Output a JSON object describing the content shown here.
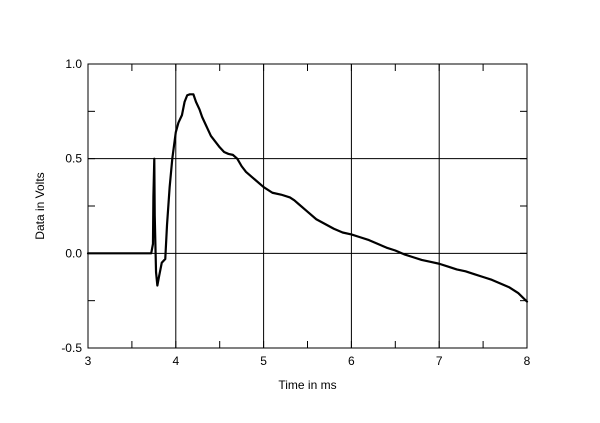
{
  "chart_data": {
    "type": "line",
    "title": "",
    "xlabel": "Time in ms",
    "ylabel": "Data in Volts",
    "xlim": [
      3,
      8
    ],
    "ylim": [
      -0.5,
      1.0
    ],
    "grid": true,
    "x_ticks": [
      "3",
      "4",
      "5",
      "6",
      "7",
      "8"
    ],
    "y_ticks": [
      "-0.5",
      "0.0",
      "0.5",
      "1.0"
    ],
    "series": [
      {
        "x": [
          3.0,
          3.5,
          3.72,
          3.74,
          3.745,
          3.755,
          3.76,
          3.775,
          3.79,
          3.81,
          3.84,
          3.88,
          3.9,
          3.93,
          3.96,
          4.0,
          4.03,
          4.07,
          4.1,
          4.13,
          4.16,
          4.2,
          4.23,
          4.27,
          4.3,
          4.35,
          4.4,
          4.5,
          4.55,
          4.6,
          4.65,
          4.7,
          4.75,
          4.8,
          4.9,
          5.0,
          5.1,
          5.2,
          5.3,
          5.35,
          5.4,
          5.5,
          5.6,
          5.7,
          5.8,
          5.9,
          6.0,
          6.1,
          6.2,
          6.3,
          6.4,
          6.5,
          6.6,
          6.7,
          6.8,
          6.9,
          7.0,
          7.1,
          7.2,
          7.3,
          7.4,
          7.5,
          7.6,
          7.7,
          7.8,
          7.9,
          8.0
        ],
        "y": [
          0.0,
          0.0,
          0.0,
          0.05,
          0.3,
          0.5,
          0.2,
          -0.1,
          -0.17,
          -0.12,
          -0.05,
          -0.03,
          0.15,
          0.35,
          0.5,
          0.64,
          0.69,
          0.73,
          0.8,
          0.835,
          0.84,
          0.84,
          0.8,
          0.76,
          0.72,
          0.67,
          0.62,
          0.56,
          0.535,
          0.525,
          0.52,
          0.5,
          0.46,
          0.43,
          0.39,
          0.35,
          0.32,
          0.31,
          0.295,
          0.28,
          0.26,
          0.22,
          0.18,
          0.155,
          0.13,
          0.11,
          0.1,
          0.085,
          0.07,
          0.05,
          0.03,
          0.015,
          -0.005,
          -0.02,
          -0.035,
          -0.045,
          -0.055,
          -0.07,
          -0.085,
          -0.095,
          -0.11,
          -0.125,
          -0.14,
          -0.16,
          -0.18,
          -0.21,
          -0.255
        ]
      }
    ]
  }
}
